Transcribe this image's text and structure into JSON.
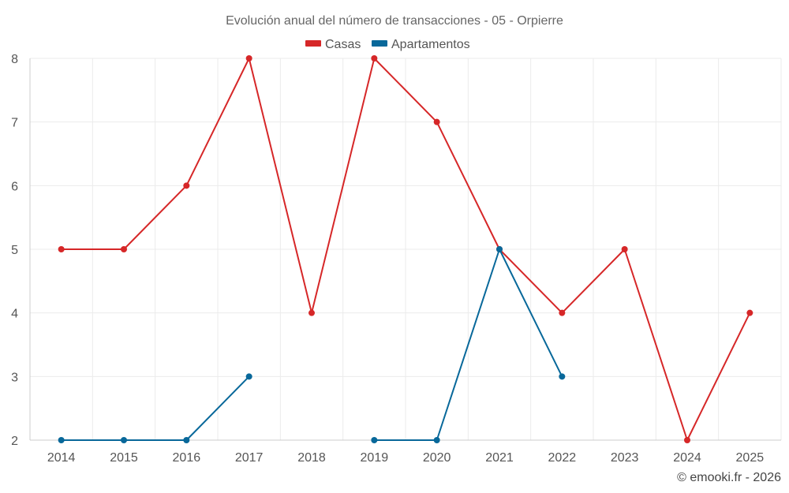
{
  "chart_data": {
    "type": "line",
    "title": "Evolución anual del número de transacciones - 05 - Orpierre",
    "xlabel": "",
    "ylabel": "",
    "categories": [
      "2014",
      "2015",
      "2016",
      "2017",
      "2018",
      "2019",
      "2020",
      "2021",
      "2022",
      "2023",
      "2024",
      "2025"
    ],
    "ylim": [
      2,
      8
    ],
    "yticks": [
      "2",
      "3",
      "4",
      "5",
      "6",
      "7",
      "8"
    ],
    "grid": true,
    "legend_position": "top-center",
    "series": [
      {
        "name": "Casas",
        "color": "#d62728",
        "values": [
          5,
          5,
          6,
          8,
          4,
          8,
          7,
          5,
          4,
          5,
          2,
          4
        ]
      },
      {
        "name": "Apartamentos",
        "color": "#08689a",
        "values": [
          2,
          2,
          2,
          3,
          null,
          2,
          2,
          5,
          3,
          null,
          null,
          null
        ]
      }
    ],
    "credit": "© emooki.fr - 2026"
  }
}
